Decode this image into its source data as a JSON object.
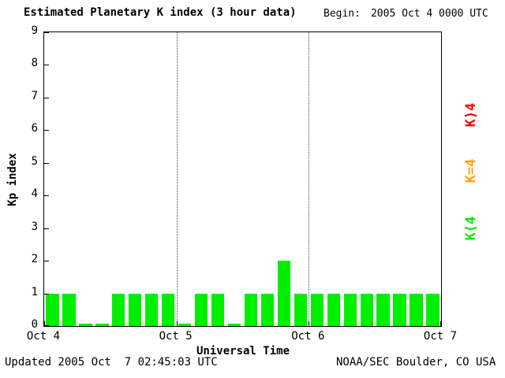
{
  "header": {
    "begin_label": "Begin:",
    "begin_value": "2005 Oct 4 0000 UTC"
  },
  "footer": {
    "updated": "Updated 2005 Oct  7 02:45:03 UTC",
    "credit": "NOAA/SEC Boulder, CO USA"
  },
  "legend": [
    {
      "label": "K⟩4",
      "color": "#ff0000"
    },
    {
      "label": "K=4",
      "color": "#ffa500"
    },
    {
      "label": "K⟨4",
      "color": "#00ee00"
    }
  ],
  "chart_data": {
    "type": "bar",
    "title": "Estimated Planetary K index (3 hour data)",
    "xlabel": "Universal Time",
    "ylabel": "Kp index",
    "ylim": [
      0,
      9
    ],
    "yticks": [
      0,
      1,
      2,
      3,
      4,
      5,
      6,
      7,
      8,
      9
    ],
    "xticklabels": [
      "Oct 4",
      "Oct 5",
      "Oct 6",
      "Oct 7"
    ],
    "bar_interval_hours": 3,
    "values": [
      1,
      1,
      0,
      0,
      1,
      1,
      1,
      1,
      0,
      1,
      1,
      0,
      1,
      1,
      2,
      1,
      1,
      1,
      1,
      1,
      1,
      1,
      1,
      1
    ],
    "colors": {
      "k_lt_4": "#00ee00",
      "k_eq_4": "#ffa500",
      "k_gt_4": "#ff0000"
    },
    "day_divider_positions": [
      0.33333,
      0.66667
    ],
    "grid": "vertical-dotted-day-lines",
    "legend_position": "right-vertical"
  }
}
